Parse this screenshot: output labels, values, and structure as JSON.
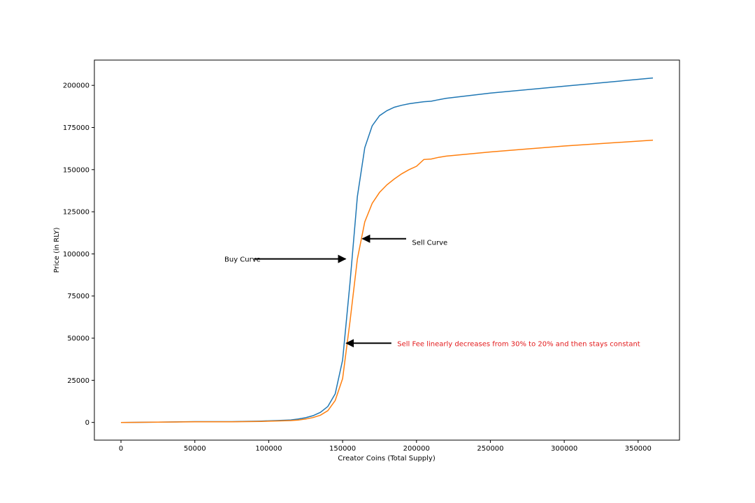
{
  "chart_data": {
    "type": "line",
    "title": "",
    "xlabel": "Creator Coins (Total Supply)",
    "ylabel": "Price (in RLY)",
    "xlim": [
      -18000,
      378000
    ],
    "ylim": [
      -10500,
      215000
    ],
    "xticks": [
      0,
      50000,
      100000,
      150000,
      200000,
      250000,
      300000,
      350000
    ],
    "yticks": [
      0,
      25000,
      50000,
      75000,
      100000,
      125000,
      150000,
      175000,
      200000
    ],
    "grid": false,
    "series": [
      {
        "color": "#1f77b4",
        "x": [
          0,
          25000,
          50000,
          75000,
          95000,
          105000,
          115000,
          120000,
          125000,
          130000,
          135000,
          140000,
          145000,
          150000,
          155000,
          160000,
          165000,
          170000,
          175000,
          180000,
          185000,
          190000,
          195000,
          200000,
          205000,
          210000,
          215000,
          220000,
          250000,
          300000,
          360000
        ],
        "values": [
          0,
          200,
          500,
          500,
          800,
          1100,
          1500,
          2000,
          2800,
          4000,
          6000,
          9500,
          17000,
          37000,
          83000,
          134000,
          163000,
          176000,
          182000,
          185000,
          187000,
          188200,
          189100,
          189700,
          190300,
          190600,
          191500,
          192300,
          195400,
          199500,
          204400
        ]
      },
      {
        "color": "#ff7f0e",
        "x": [
          0,
          25000,
          50000,
          75000,
          95000,
          105000,
          115000,
          120000,
          125000,
          130000,
          135000,
          140000,
          145000,
          150000,
          155000,
          160000,
          165000,
          170000,
          175000,
          180000,
          185000,
          190000,
          195000,
          200000,
          205000,
          210000,
          215000,
          220000,
          250000,
          300000,
          360000
        ],
        "values": [
          0,
          150,
          400,
          400,
          600,
          850,
          1100,
          1400,
          2000,
          2900,
          4300,
          7000,
          13000,
          26000,
          60000,
          97000,
          119000,
          130000,
          136500,
          141000,
          144500,
          147500,
          150000,
          152000,
          156000,
          156300,
          157300,
          158000,
          160500,
          164000,
          167500
        ]
      }
    ],
    "annotations": [
      {
        "text": "Buy Curve",
        "color": "#000000",
        "x": 70000,
        "y": 97000,
        "arrow_from": [
          90000,
          97000
        ],
        "arrow_to": [
          152000,
          97000
        ]
      },
      {
        "text": "Sell Curve",
        "color": "#000000",
        "x": 197000,
        "y": 107000,
        "arrow_from": [
          193000,
          109000
        ],
        "arrow_to": [
          163500,
          109000
        ]
      },
      {
        "text": "Sell Fee linearly decreases from 30% to 20% and then stays constant",
        "color": "#e31a1c",
        "x": 187000,
        "y": 47000,
        "arrow_from": [
          183000,
          47000
        ],
        "arrow_to": [
          152500,
          47000
        ]
      }
    ]
  }
}
